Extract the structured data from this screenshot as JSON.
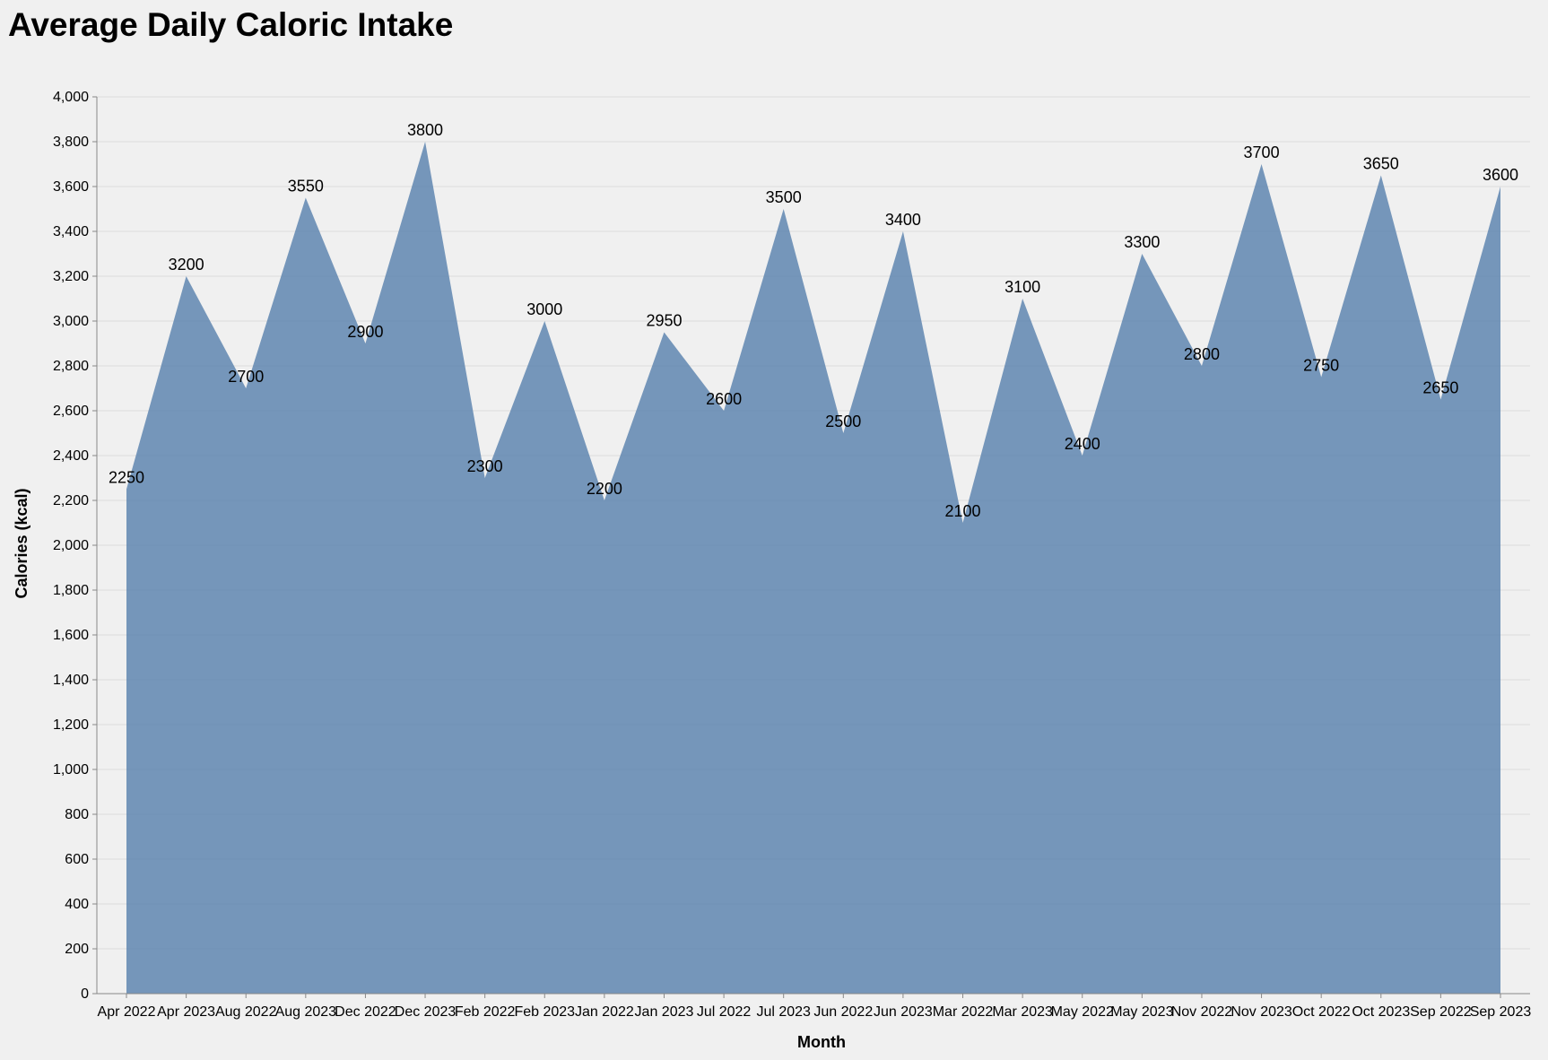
{
  "chart_data": {
    "type": "area",
    "title": "Average Daily Caloric Intake",
    "xlabel": "Month",
    "ylabel": "Calories (kcal)",
    "ylim": [
      0,
      4000
    ],
    "yticks": [
      0,
      200,
      400,
      600,
      800,
      1000,
      1200,
      1400,
      1600,
      1800,
      2000,
      2200,
      2400,
      2600,
      2800,
      3000,
      3200,
      3400,
      3600,
      3800,
      4000
    ],
    "ytick_labels": [
      "0",
      "200",
      "400",
      "600",
      "800",
      "1,000",
      "1,200",
      "1,400",
      "1,600",
      "1,800",
      "2,000",
      "2,200",
      "2,400",
      "2,600",
      "2,800",
      "3,000",
      "3,200",
      "3,400",
      "3,600",
      "3,800",
      "4,000"
    ],
    "grid": true,
    "categories": [
      "Apr 2022",
      "Apr 2023",
      "Aug 2022",
      "Aug 2023",
      "Dec 2022",
      "Dec 2023",
      "Feb 2022",
      "Feb 2023",
      "Jan 2022",
      "Jan 2023",
      "Jul 2022",
      "Jul 2023",
      "Jun 2022",
      "Jun 2023",
      "Mar 2022",
      "Mar 2023",
      "May 2022",
      "May 2023",
      "Nov 2022",
      "Nov 2023",
      "Oct 2022",
      "Oct 2023",
      "Sep 2022",
      "Sep 2023"
    ],
    "values": [
      2250,
      3200,
      2700,
      3550,
      2900,
      3800,
      2300,
      3000,
      2200,
      2950,
      2600,
      3500,
      2500,
      3400,
      2100,
      3100,
      2400,
      3300,
      2800,
      3700,
      2750,
      3650,
      2650,
      3600
    ],
    "value_labels": [
      "2250",
      "3200",
      "2700",
      "3550",
      "2900",
      "3800",
      "2300",
      "3000",
      "2200",
      "2950",
      "2600",
      "3500",
      "2500",
      "3400",
      "2100",
      "3100",
      "2400",
      "3300",
      "2800",
      "3700",
      "2750",
      "3650",
      "2650",
      "3600"
    ],
    "fill_color": "#4c78a8",
    "fill_opacity": 0.75
  }
}
